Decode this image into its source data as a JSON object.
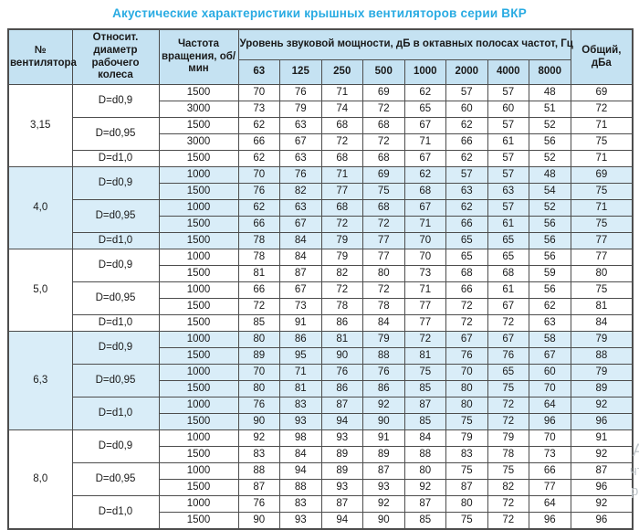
{
  "page": {
    "title": "Акустические характеристики крышных вентиляторов серии ВКР"
  },
  "colors": {
    "title": "#29ABE2",
    "header_bg": "#C5E2F2",
    "band_bg": "#D9EDF8",
    "border": "#4D4D4D"
  },
  "table": {
    "headers": {
      "fan_number": "№ вентилятора",
      "rel_diameter": "Относит. диаметр рабочего колеса",
      "rotation_speed": "Частота вращения, об/мин",
      "sound_power": "Уровень звуковой мощности, дБ в октавных полосах частот, Гц",
      "total": "Общий, дБа"
    },
    "freq_headers": [
      "63",
      "125",
      "250",
      "500",
      "1000",
      "2000",
      "4000",
      "8000"
    ],
    "sections": [
      {
        "fan": "3,15",
        "shaded": false,
        "groups": [
          {
            "diameter": "D=d0,9",
            "rows": [
              {
                "speed": "1500",
                "levels": [
                  70,
                  76,
                  71,
                  69,
                  62,
                  57,
                  57,
                  48
                ],
                "total": 69
              },
              {
                "speed": "3000",
                "levels": [
                  73,
                  79,
                  74,
                  72,
                  65,
                  60,
                  60,
                  51
                ],
                "total": 72
              }
            ]
          },
          {
            "diameter": "D=d0,95",
            "rows": [
              {
                "speed": "1500",
                "levels": [
                  62,
                  63,
                  68,
                  68,
                  67,
                  62,
                  57,
                  52
                ],
                "total": 71
              },
              {
                "speed": "3000",
                "levels": [
                  66,
                  67,
                  72,
                  72,
                  71,
                  66,
                  61,
                  56
                ],
                "total": 75
              }
            ]
          },
          {
            "diameter": "D=d1,0",
            "rows": [
              {
                "speed": "1500",
                "levels": [
                  62,
                  63,
                  68,
                  68,
                  67,
                  62,
                  57,
                  52
                ],
                "total": 71
              }
            ]
          }
        ]
      },
      {
        "fan": "4,0",
        "shaded": true,
        "groups": [
          {
            "diameter": "D=d0,9",
            "rows": [
              {
                "speed": "1000",
                "levels": [
                  70,
                  76,
                  71,
                  69,
                  62,
                  57,
                  57,
                  48
                ],
                "total": 69
              },
              {
                "speed": "1500",
                "levels": [
                  76,
                  82,
                  77,
                  75,
                  68,
                  63,
                  63,
                  54
                ],
                "total": 75
              }
            ]
          },
          {
            "diameter": "D=d0,95",
            "rows": [
              {
                "speed": "1000",
                "levels": [
                  62,
                  63,
                  68,
                  68,
                  67,
                  62,
                  57,
                  52
                ],
                "total": 71
              },
              {
                "speed": "1500",
                "levels": [
                  66,
                  67,
                  72,
                  72,
                  71,
                  66,
                  61,
                  56
                ],
                "total": 75
              }
            ]
          },
          {
            "diameter": "D=d1,0",
            "rows": [
              {
                "speed": "1500",
                "levels": [
                  78,
                  84,
                  79,
                  77,
                  70,
                  65,
                  65,
                  56
                ],
                "total": 77
              }
            ]
          }
        ]
      },
      {
        "fan": "5,0",
        "shaded": false,
        "groups": [
          {
            "diameter": "D=d0,9",
            "rows": [
              {
                "speed": "1000",
                "levels": [
                  78,
                  84,
                  79,
                  77,
                  70,
                  65,
                  65,
                  56
                ],
                "total": 77
              },
              {
                "speed": "1500",
                "levels": [
                  81,
                  87,
                  82,
                  80,
                  73,
                  68,
                  68,
                  59
                ],
                "total": 80
              }
            ]
          },
          {
            "diameter": "D=d0,95",
            "rows": [
              {
                "speed": "1000",
                "levels": [
                  66,
                  67,
                  72,
                  72,
                  71,
                  66,
                  61,
                  56
                ],
                "total": 75
              },
              {
                "speed": "1500",
                "levels": [
                  72,
                  73,
                  78,
                  78,
                  77,
                  72,
                  67,
                  62
                ],
                "total": 81
              }
            ]
          },
          {
            "diameter": "D=d1,0",
            "rows": [
              {
                "speed": "1500",
                "levels": [
                  85,
                  91,
                  86,
                  84,
                  77,
                  72,
                  72,
                  63
                ],
                "total": 84
              }
            ]
          }
        ]
      },
      {
        "fan": "6,3",
        "shaded": true,
        "groups": [
          {
            "diameter": "D=d0,9",
            "rows": [
              {
                "speed": "1000",
                "levels": [
                  80,
                  86,
                  81,
                  79,
                  72,
                  67,
                  67,
                  58
                ],
                "total": 79
              },
              {
                "speed": "1500",
                "levels": [
                  89,
                  95,
                  90,
                  88,
                  81,
                  76,
                  76,
                  67
                ],
                "total": 88
              }
            ]
          },
          {
            "diameter": "D=d0,95",
            "rows": [
              {
                "speed": "1000",
                "levels": [
                  70,
                  71,
                  76,
                  76,
                  75,
                  70,
                  65,
                  60
                ],
                "total": 79
              },
              {
                "speed": "1500",
                "levels": [
                  80,
                  81,
                  86,
                  86,
                  85,
                  80,
                  75,
                  70
                ],
                "total": 89
              }
            ]
          },
          {
            "diameter": "D=d1,0",
            "rows": [
              {
                "speed": "1000",
                "levels": [
                  76,
                  83,
                  87,
                  92,
                  87,
                  80,
                  72,
                  64
                ],
                "total": 92
              },
              {
                "speed": "1500",
                "levels": [
                  90,
                  93,
                  94,
                  90,
                  85,
                  75,
                  72,
                  96
                ],
                "total": 96
              }
            ]
          }
        ]
      },
      {
        "fan": "8,0",
        "shaded": false,
        "groups": [
          {
            "diameter": "D=d0,9",
            "rows": [
              {
                "speed": "1000",
                "levels": [
                  92,
                  98,
                  93,
                  91,
                  84,
                  79,
                  79,
                  70
                ],
                "total": 91
              },
              {
                "speed": "1500",
                "levels": [
                  83,
                  84,
                  89,
                  89,
                  88,
                  83,
                  78,
                  73
                ],
                "total": 92
              }
            ]
          },
          {
            "diameter": "D=d0,95",
            "rows": [
              {
                "speed": "1000",
                "levels": [
                  88,
                  94,
                  89,
                  87,
                  80,
                  75,
                  75,
                  66
                ],
                "total": 87
              },
              {
                "speed": "1500",
                "levels": [
                  87,
                  88,
                  93,
                  93,
                  92,
                  87,
                  82,
                  77
                ],
                "total": 96
              }
            ]
          },
          {
            "diameter": "D=d1,0",
            "rows": [
              {
                "speed": "1000",
                "levels": [
                  76,
                  83,
                  87,
                  92,
                  87,
                  80,
                  72,
                  64
                ],
                "total": 92
              },
              {
                "speed": "1500",
                "levels": [
                  90,
                  93,
                  94,
                  90,
                  85,
                  75,
                  72,
                  96
                ],
                "total": 96
              }
            ]
          }
        ]
      }
    ]
  },
  "watermark": {
    "fragments": [
      "Ак",
      "чт",
      "ра"
    ]
  }
}
